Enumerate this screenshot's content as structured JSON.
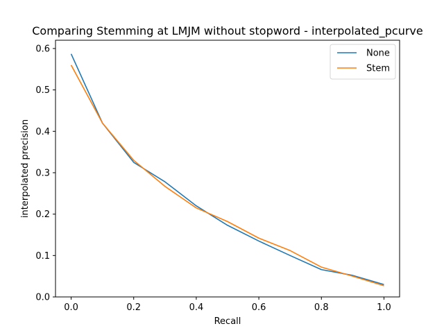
{
  "chart_data": {
    "type": "line",
    "title": "Comparing Stemming at LMJM without stopword - interpolated_pcurve",
    "xlabel": "Recall",
    "ylabel": "interpolated precision",
    "xlim": [
      -0.05,
      1.05
    ],
    "ylim": [
      0.0,
      0.62
    ],
    "xticks": [
      0.0,
      0.2,
      0.4,
      0.6,
      0.8,
      1.0
    ],
    "xtick_labels": [
      "0.0",
      "0.2",
      "0.4",
      "0.6",
      "0.8",
      "1.0"
    ],
    "yticks": [
      0.0,
      0.1,
      0.2,
      0.3,
      0.4,
      0.5,
      0.6
    ],
    "ytick_labels": [
      "0.0",
      "0.1",
      "0.2",
      "0.3",
      "0.4",
      "0.5",
      "0.6"
    ],
    "grid": false,
    "legend_position": "top-right",
    "x": [
      0.0,
      0.1,
      0.2,
      0.3,
      0.4,
      0.5,
      0.6,
      0.7,
      0.8,
      0.9,
      1.0
    ],
    "series": [
      {
        "name": "None",
        "color": "#1f77b4",
        "values": [
          0.587,
          0.42,
          0.325,
          0.278,
          0.22,
          0.173,
          0.135,
          0.1,
          0.066,
          0.052,
          0.03
        ]
      },
      {
        "name": "Stem",
        "color": "#ff7f0e",
        "values": [
          0.56,
          0.42,
          0.33,
          0.267,
          0.215,
          0.182,
          0.142,
          0.112,
          0.072,
          0.05,
          0.027
        ]
      }
    ]
  }
}
